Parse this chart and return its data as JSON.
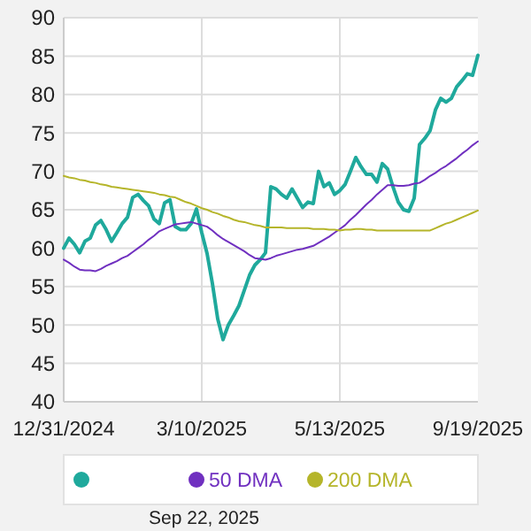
{
  "chart_data": {
    "type": "line",
    "categories": [
      "12/31/2024",
      null,
      null,
      null,
      null,
      null,
      null,
      null,
      null,
      null,
      null,
      null,
      null,
      null,
      null,
      null,
      null,
      null,
      null,
      null,
      null,
      null,
      null,
      null,
      null,
      null,
      "3/10/2025",
      null,
      null,
      null,
      null,
      null,
      null,
      null,
      null,
      null,
      null,
      null,
      null,
      null,
      null,
      null,
      null,
      null,
      null,
      null,
      null,
      null,
      null,
      null,
      null,
      null,
      "5/13/2025",
      null,
      null,
      null,
      null,
      null,
      null,
      null,
      null,
      null,
      null,
      null,
      null,
      null,
      null,
      null,
      null,
      null,
      null,
      null,
      null,
      null,
      null,
      null,
      null,
      null,
      "9/19/2025"
    ],
    "ylim": [
      40,
      90
    ],
    "yticks": [
      40,
      45,
      50,
      55,
      60,
      65,
      70,
      75,
      80,
      85,
      90
    ],
    "grid": true,
    "legend": "bottom",
    "marker": "none",
    "line_style": "solid",
    "annotations": [
      "Sep 22, 2025"
    ],
    "series": [
      {
        "color": "#1fa99c",
        "values": [
          60,
          61.3,
          60.5,
          59.4,
          60.9,
          61.3,
          63,
          63.6,
          62.4,
          60.9,
          62,
          63.2,
          64,
          66.6,
          67,
          66.2,
          65.5,
          63.8,
          63.2,
          65.9,
          66.3,
          62.8,
          62.4,
          62.4,
          63.2,
          65.1,
          62,
          59.3,
          55.4,
          50.8,
          48.1,
          50,
          51.2,
          52.5,
          54.5,
          56.5,
          57.8,
          58.5,
          59.4,
          68,
          67.7,
          67,
          66.5,
          67.7,
          66.5,
          65.3,
          66,
          65.8,
          70,
          68,
          68.5,
          67,
          67.5,
          68.3,
          70,
          71.8,
          70.6,
          69.6,
          69.6,
          68.6,
          71,
          70.3,
          68,
          66,
          65,
          64.8,
          66.5,
          73.5,
          74.3,
          75.3,
          78,
          79.5,
          79,
          79.5,
          81,
          81.8,
          82.7,
          82.5,
          85.1
        ]
      },
      {
        "name": "50 DMA",
        "color": "#7030c0",
        "values": [
          58.5,
          58.1,
          57.6,
          57.2,
          57.1,
          57.1,
          57,
          57.3,
          57.7,
          58,
          58.3,
          58.7,
          59,
          59.5,
          60,
          60.5,
          61.1,
          61.6,
          62.2,
          62.5,
          62.8,
          63.1,
          63.2,
          63.3,
          63.4,
          63.2,
          63,
          62.8,
          62.3,
          61.7,
          61.2,
          60.8,
          60.4,
          60,
          59.6,
          59.1,
          58.7,
          58.6,
          58.5,
          58.7,
          59,
          59.2,
          59.4,
          59.6,
          59.8,
          59.9,
          60.1,
          60.3,
          60.7,
          61.1,
          61.5,
          62,
          62.5,
          63,
          63.7,
          64.3,
          65,
          65.7,
          66.3,
          67,
          67.6,
          68.2,
          68.2,
          68.1,
          68.1,
          68.2,
          68.4,
          68.5,
          68.9,
          69.4,
          69.8,
          70.3,
          70.7,
          71.2,
          71.7,
          72.3,
          72.8,
          73.4,
          73.9
        ]
      },
      {
        "name": "200 DMA",
        "color": "#b5b52a",
        "values": [
          69.4,
          69.2,
          69.1,
          68.9,
          68.8,
          68.6,
          68.5,
          68.3,
          68.2,
          68,
          67.9,
          67.8,
          67.7,
          67.6,
          67.5,
          67.4,
          67.3,
          67.2,
          67,
          66.9,
          66.7,
          66.6,
          66.3,
          66,
          65.8,
          65.5,
          65.2,
          65,
          64.7,
          64.5,
          64.2,
          64,
          63.7,
          63.5,
          63.4,
          63.2,
          63,
          62.9,
          62.7,
          62.7,
          62.7,
          62.7,
          62.6,
          62.6,
          62.6,
          62.6,
          62.6,
          62.5,
          62.5,
          62.5,
          62.4,
          62.4,
          62.3,
          62.4,
          62.4,
          62.5,
          62.5,
          62.4,
          62.4,
          62.3,
          62.3,
          62.3,
          62.3,
          62.3,
          62.3,
          62.3,
          62.3,
          62.3,
          62.3,
          62.3,
          62.6,
          62.9,
          63.2,
          63.4,
          63.7,
          64,
          64.3,
          64.6,
          64.9
        ]
      }
    ]
  }
}
